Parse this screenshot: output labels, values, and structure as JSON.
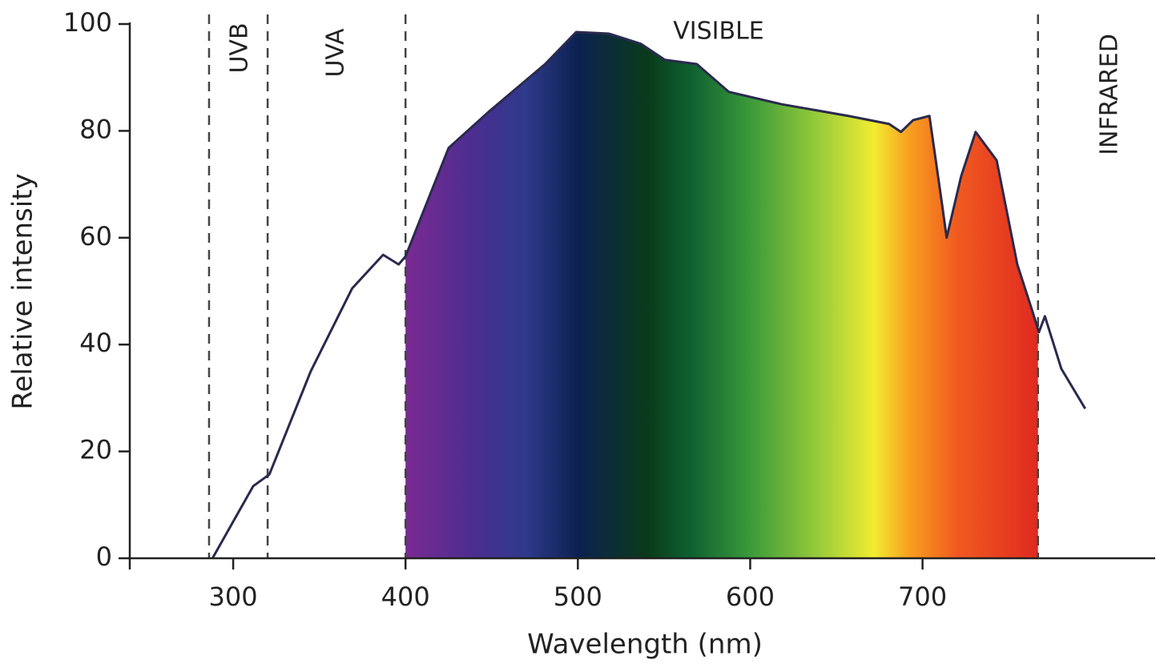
{
  "chart_data": {
    "type": "line",
    "x_label": "Wavelength (nm)",
    "y_label": "Relative intensity",
    "xlim": [
      240,
      835
    ],
    "ylim": [
      0,
      100
    ],
    "xticks": [
      300,
      400,
      500,
      600,
      700
    ],
    "yticks": [
      0,
      20,
      40,
      60,
      80,
      100
    ],
    "series": [
      {
        "color": "#2a2a4e",
        "x": [
          288,
          311.6,
          321,
          345,
          369,
          387,
          396,
          400,
          425,
          448,
          481,
          499,
          518,
          536.5,
          550.5,
          569,
          587.6,
          618,
          657,
          680.6,
          687.5,
          694.5,
          704,
          711,
          714,
          722.4,
          730.8,
          743,
          755,
          764,
          767.5,
          771,
          780.5,
          794.4
        ],
        "values": [
          0,
          13.5,
          15.7,
          35,
          50.5,
          56.8,
          55,
          56.5,
          76.8,
          83.5,
          92.5,
          98.5,
          98.2,
          96.3,
          93.3,
          92.5,
          87.3,
          85,
          82.8,
          81.3,
          79.8,
          82,
          82.8,
          67,
          60,
          71.5,
          79.8,
          74.5,
          55,
          46,
          42.3,
          45.3,
          35.5,
          28
        ]
      }
    ],
    "boundaries": [
      286,
      320,
      400,
      767
    ],
    "annotations": [
      "UVB",
      "UVA",
      "VISIBLE",
      "INFRARED"
    ],
    "spectrum_gradient": [
      {
        "at": 400,
        "color": "#7a2a92"
      },
      {
        "at": 440,
        "color": "#4a2e90"
      },
      {
        "at": 470,
        "color": "#2e3a8c"
      },
      {
        "at": 500,
        "color": "#0c2150"
      },
      {
        "at": 540,
        "color": "#0a3a1a"
      },
      {
        "at": 565,
        "color": "#0e6030"
      },
      {
        "at": 600,
        "color": "#3a9a3a"
      },
      {
        "at": 640,
        "color": "#9acc3a"
      },
      {
        "at": 672,
        "color": "#f2ec30"
      },
      {
        "at": 692,
        "color": "#f8a020"
      },
      {
        "at": 720,
        "color": "#f05a20"
      },
      {
        "at": 767,
        "color": "#e02a20"
      }
    ]
  }
}
